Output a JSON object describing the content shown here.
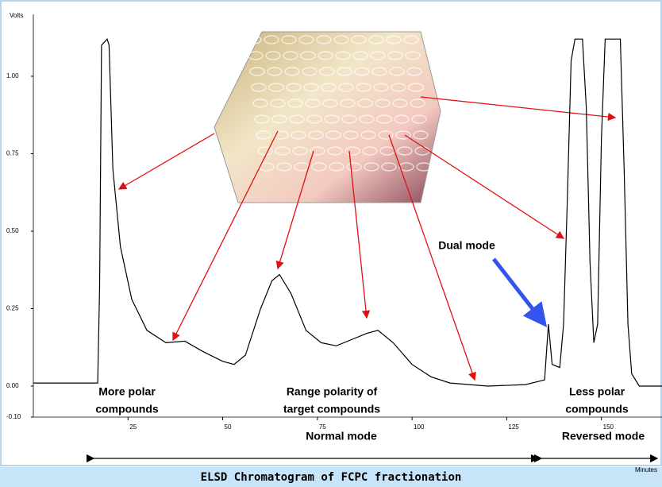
{
  "chart_data": {
    "type": "line",
    "title": "ELSD Chromatogram of FCPC fractionation",
    "y_label": "Volts",
    "x_label": "Minutes",
    "annotations": [
      "More polar",
      "compounds",
      "Range polarity of",
      "target compounds",
      "Less polar",
      "compounds",
      "Normal mode",
      "Reversed mode",
      "Dual mode"
    ],
    "color": "#000000",
    "x": [
      0,
      17,
      17.5,
      18,
      19.5,
      20,
      21,
      23,
      26,
      30,
      35,
      40,
      45,
      50,
      53,
      56,
      60,
      63,
      65,
      68,
      72,
      76,
      80,
      84,
      88,
      91,
      95,
      100,
      105,
      110,
      120,
      130,
      135,
      136,
      137,
      139,
      140,
      141,
      142,
      143,
      145,
      146,
      147,
      148,
      149,
      150,
      151,
      155,
      156,
      157,
      158,
      160,
      166
    ],
    "values": [
      0.01,
      0.01,
      0.32,
      1.1,
      1.12,
      1.1,
      0.7,
      0.45,
      0.28,
      0.18,
      0.14,
      0.145,
      0.11,
      0.08,
      0.07,
      0.1,
      0.25,
      0.34,
      0.36,
      0.3,
      0.18,
      0.14,
      0.13,
      0.15,
      0.17,
      0.18,
      0.14,
      0.07,
      0.03,
      0.01,
      0.0,
      0.005,
      0.02,
      0.2,
      0.07,
      0.06,
      0.2,
      0.6,
      1.05,
      1.12,
      1.12,
      0.9,
      0.4,
      0.14,
      0.2,
      0.8,
      1.12,
      1.12,
      0.7,
      0.2,
      0.04,
      0.0,
      0.0
    ],
    "xlim": [
      0,
      166
    ],
    "ylim": [
      -0.1,
      1.2
    ],
    "xticks": [
      25,
      50,
      75,
      100,
      125,
      150
    ],
    "yticks": [
      {
        "value": -0.1,
        "label": "-0.10"
      },
      {
        "value": 0,
        "label": "0.00"
      },
      {
        "value": 0.25,
        "label": "0.25"
      },
      {
        "value": 0.5,
        "label": "0.50"
      },
      {
        "value": 0.75,
        "label": "0.75"
      },
      {
        "value": 1,
        "label": "1.00"
      }
    ]
  }
}
